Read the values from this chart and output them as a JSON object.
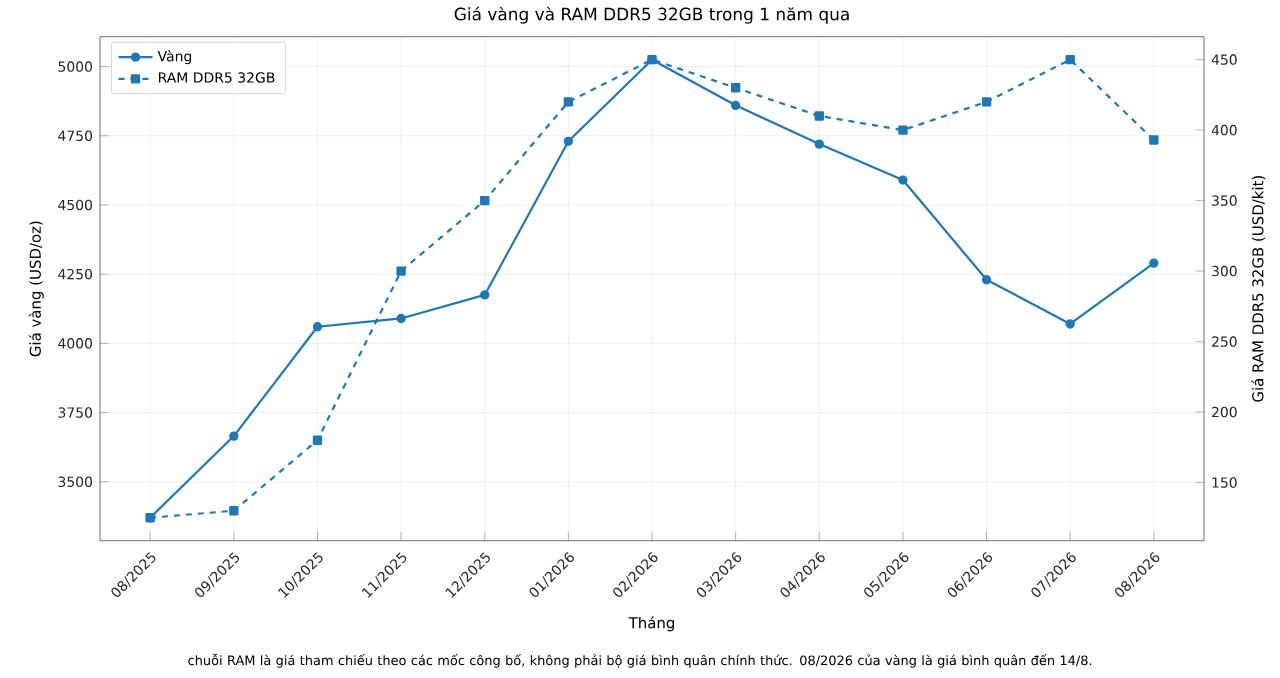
{
  "chart_data": {
    "type": "line",
    "title": "Giá vàng và RAM DDR5 32GB trong 1 năm qua",
    "xlabel": "Tháng",
    "ylabel": "Giá vàng (USD/oz)",
    "y2label": "Giá RAM DDR5 32GB (USD/kit)",
    "categories": [
      "08/2025",
      "09/2025",
      "10/2025",
      "11/2025",
      "12/2025",
      "01/2026",
      "02/2026",
      "03/2026",
      "04/2026",
      "05/2026",
      "06/2026",
      "07/2026",
      "08/2026"
    ],
    "series": [
      {
        "name": "Vàng",
        "color": "#1f77b4",
        "marker": "circle",
        "line_style": "solid",
        "values": [
          3370,
          3665,
          4060,
          4090,
          4175,
          4730,
          5025,
          4860,
          4720,
          4590,
          4230,
          4070,
          4290
        ]
      },
      {
        "name": "RAM DDR5 32GB",
        "color": "#1f77b4",
        "marker": "square",
        "line_style": "dashed",
        "axis": "y2",
        "values": [
          125,
          130,
          180,
          300,
          350,
          420,
          450,
          430,
          410,
          400,
          420,
          450,
          393
        ]
      }
    ],
    "ylim": [
      3287,
      5108
    ],
    "yticks": [
      3500,
      3750,
      4000,
      4250,
      4500,
      4750,
      5000
    ],
    "y2lim": [
      108.75,
      466.25
    ],
    "y2ticks": [
      150,
      200,
      250,
      300,
      350,
      400,
      450
    ],
    "grid": true,
    "legend": "top left",
    "annotations": [
      "chuỗi RAM là giá tham chiếu theo các mốc công bố, không phải bộ giá bình quân chính thức. 08/2026 của vàng là giá bình quân đến 14/8."
    ]
  }
}
